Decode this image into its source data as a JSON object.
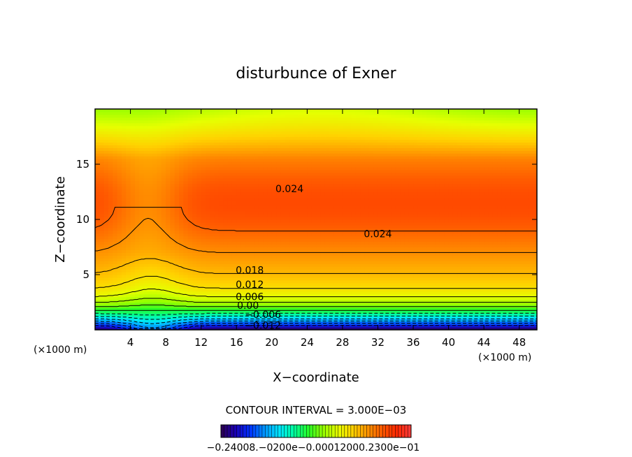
{
  "chart_data": {
    "type": "heatmap",
    "title": "disturbunce of Exner",
    "xlabel": "X−coordinate",
    "ylabel": "Z−coordinate",
    "x_unit_label": "(×1000 m)",
    "x_unit_label_right": "(×1000 m)",
    "xlim": [
      0,
      50
    ],
    "ylim": [
      0,
      20
    ],
    "x_ticks": [
      4,
      8,
      12,
      16,
      20,
      24,
      28,
      32,
      36,
      40,
      44,
      48
    ],
    "y_ticks": [
      5,
      10,
      15
    ],
    "contour_interval_text": "CONTOUR INTERVAL = 3.000E−03",
    "contour_interval": 0.003,
    "value_range": [
      -0.024,
      0.03
    ],
    "contour_labels": [
      {
        "value": 0.024,
        "text": "0.024",
        "x": 22,
        "y": 12.8
      },
      {
        "value": 0.024,
        "text": "0.024",
        "x": 32,
        "y": 8.7
      },
      {
        "value": 0.018,
        "text": "0.018",
        "x": 17.5,
        "y": 5.4
      },
      {
        "value": 0.012,
        "text": "0.012",
        "x": 17.5,
        "y": 4.1
      },
      {
        "value": 0.006,
        "text": "0.006",
        "x": 17.5,
        "y": 3.0
      },
      {
        "value": 0.0,
        "text": "0.00",
        "x": 17.3,
        "y": 2.2
      },
      {
        "value": -0.006,
        "text": "−0.006",
        "x": 19,
        "y": 1.4
      },
      {
        "value": -0.012,
        "text": "−0.012",
        "x": 19,
        "y": 0.4
      }
    ],
    "colorbar": {
      "labels_text": "−0.24008.−0200e−0.00012000.2300e−01",
      "colors": [
        "#2d0050",
        "#1a00b4",
        "#0032ff",
        "#0096ff",
        "#00e6ff",
        "#00ff9e",
        "#28ff28",
        "#96ff00",
        "#e6ff00",
        "#ffd200",
        "#ff9600",
        "#ff5a00",
        "#ff2800",
        "#ff3c3c"
      ]
    },
    "legend_placement": "bottom",
    "grid": false
  }
}
